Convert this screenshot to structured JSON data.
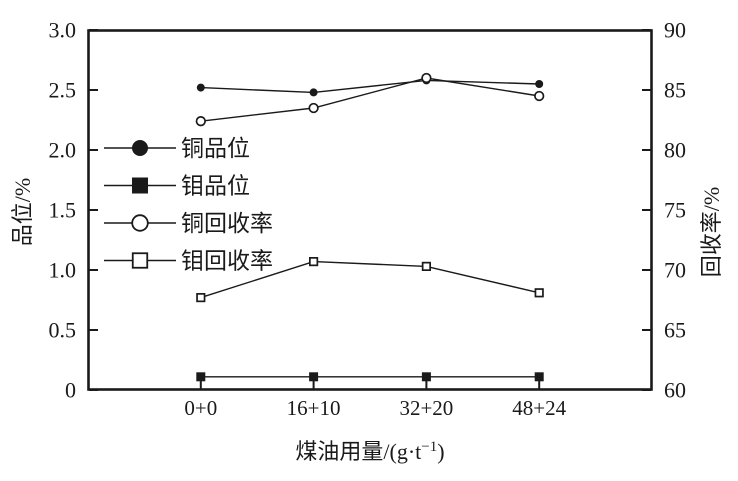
{
  "figure": {
    "background": "#ffffff",
    "ink": "#1a1a1a"
  },
  "chart_data": {
    "type": "line",
    "title": "",
    "categories": [
      "0+0",
      "16+10",
      "32+20",
      "48+24"
    ],
    "xlabel": "煤油用量/(g·t⁻¹)",
    "xlabel_parts": {
      "main": "煤油用量/(g·t",
      "sup": "−1",
      "end": ")"
    },
    "left_axis": {
      "label": "品位/%",
      "min": 0,
      "max": 3.0,
      "tick_labels": [
        "3.0",
        "2.5",
        "2.0",
        "1.5",
        "1.0",
        "0.5",
        "0"
      ],
      "tick_values": [
        3.0,
        2.5,
        2.0,
        1.5,
        1.0,
        0.5,
        0
      ]
    },
    "right_axis": {
      "label": "回收率/%",
      "min": 60,
      "max": 90,
      "tick_labels": [
        "90",
        "85",
        "80",
        "75",
        "70",
        "65",
        "60"
      ],
      "tick_values": [
        90,
        85,
        80,
        75,
        70,
        65,
        60
      ]
    },
    "grid": false,
    "legend_position": "inside upper-left",
    "series": [
      {
        "id": "cu-grade",
        "name": "铜品位",
        "axis": "left",
        "marker": "filled-circle",
        "values": [
          2.52,
          2.48,
          2.58,
          2.55
        ]
      },
      {
        "id": "mo-grade",
        "name": "钼品位",
        "axis": "left",
        "marker": "filled-square",
        "values": [
          0.11,
          0.11,
          0.11,
          0.11
        ]
      },
      {
        "id": "cu-recovery",
        "name": "铜回收率",
        "axis": "right",
        "marker": "open-circle",
        "values": [
          82.4,
          83.5,
          86.0,
          84.5
        ]
      },
      {
        "id": "mo-recovery",
        "name": "钼回收率",
        "axis": "right",
        "marker": "open-square",
        "values": [
          67.7,
          70.7,
          70.3,
          68.1
        ]
      }
    ]
  }
}
